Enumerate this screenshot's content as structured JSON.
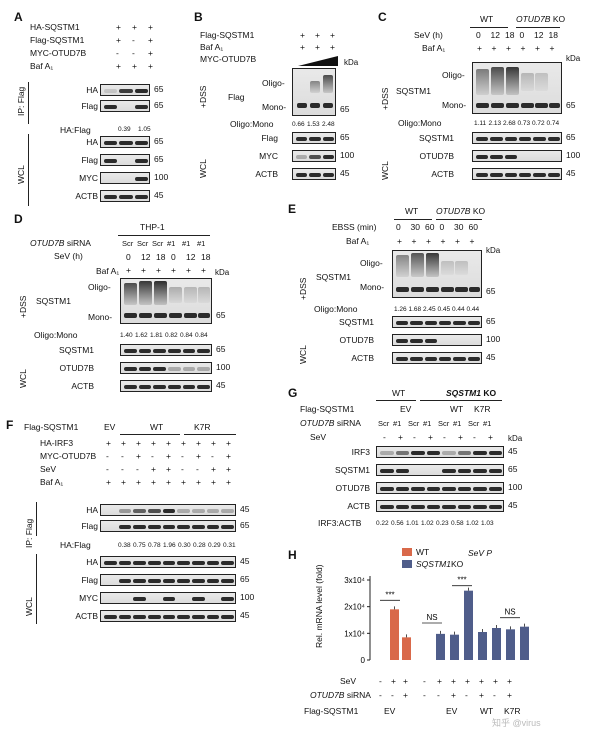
{
  "panels": {
    "A": {
      "letter": "A",
      "conditions": [
        {
          "label": "HA-SQSTM1",
          "marks": [
            "+",
            "+",
            "+"
          ]
        },
        {
          "label": "Flag-SQSTM1",
          "marks": [
            "+",
            "-",
            "+"
          ]
        },
        {
          "label": "MYC-OTUD7B",
          "marks": [
            "-",
            "-",
            "+"
          ]
        },
        {
          "label": "Baf A₁",
          "marks": [
            "+",
            "+",
            "+"
          ]
        }
      ],
      "ip_label": "IP: Flag",
      "wcl_label": "WCL",
      "blots_ip": [
        {
          "label": "HA",
          "mw": "65"
        },
        {
          "label": "Flag",
          "mw": "65"
        }
      ],
      "ratio_label": "HA:Flag",
      "ratio_values": [
        "0.39",
        "1.05"
      ],
      "blots_wcl": [
        {
          "label": "HA",
          "mw": "65"
        },
        {
          "label": "Flag",
          "mw": "65"
        },
        {
          "label": "MYC",
          "mw": "100"
        },
        {
          "label": "ACTB",
          "mw": "45"
        }
      ]
    },
    "B": {
      "letter": "B",
      "conditions": [
        {
          "label": "Flag-SQSTM1",
          "marks": [
            "+",
            "+",
            "+"
          ]
        },
        {
          "label": "Baf A₁",
          "marks": [
            "+",
            "+",
            "+"
          ]
        },
        {
          "label": "MYC-OTUD7B",
          "marks": []
        }
      ],
      "kda": "kDa",
      "dss_label": "+DSS",
      "wcl_label": "WCL",
      "oligo": "Oligo-",
      "mono": "Mono-",
      "blot_main": {
        "label": "Flag",
        "mw": "65"
      },
      "ratio_label": "Oligo:Mono",
      "ratio_values": [
        "0.66",
        "1.53",
        "2.48"
      ],
      "blots_wcl": [
        {
          "label": "Flag",
          "mw": "65"
        },
        {
          "label": "MYC",
          "mw": "100"
        },
        {
          "label": "ACTB",
          "mw": "45"
        }
      ]
    },
    "C": {
      "letter": "C",
      "group_wt": "WT",
      "group_ko": "OTUD7B",
      "group_ko_suffix": " KO",
      "sev_label": "SeV (h)",
      "sev_values": [
        "0",
        "12",
        "18",
        "0",
        "12",
        "18"
      ],
      "baf_label": "Baf A₁",
      "baf_marks": [
        "+",
        "+",
        "+",
        "+",
        "+",
        "+"
      ],
      "kda": "kDa",
      "dss_label": "+DSS",
      "wcl_label": "WCL",
      "oligo": "Oligo-",
      "mono": "Mono-",
      "blot_main": {
        "label": "SQSTM1",
        "mw": "65"
      },
      "ratio_label": "Oligo:Mono",
      "ratio_values": [
        "1.11",
        "2.13",
        "2.68",
        "0.73",
        "0.72",
        "0.74"
      ],
      "blots_wcl": [
        {
          "label": "SQSTM1",
          "mw": "65"
        },
        {
          "label": "OTUD7B",
          "mw": "100"
        },
        {
          "label": "ACTB",
          "mw": "45"
        }
      ]
    },
    "D": {
      "letter": "D",
      "cell": "THP-1",
      "sirna_label": "OTUD7B",
      "sirna_suffix": " siRNA",
      "sirna_values": [
        "Scr",
        "Scr",
        "Scr",
        "#1",
        "#1",
        "#1"
      ],
      "sev_label": "SeV (h)",
      "sev_values": [
        "0",
        "12",
        "18",
        "0",
        "12",
        "18"
      ],
      "baf_label": "Baf A₁",
      "kda": "kDa",
      "dss_label": "+DSS",
      "wcl_label": "WCL",
      "oligo": "Oligo-",
      "mono": "Mono-",
      "blot_main": {
        "label": "SQSTM1",
        "mw": "65"
      },
      "ratio_label": "Oligo:Mono",
      "ratio_values": [
        "1.40",
        "1.62",
        "1.81",
        "0.82",
        "0.84",
        "0.84"
      ],
      "blots_wcl": [
        {
          "label": "SQSTM1",
          "mw": "65"
        },
        {
          "label": "OTUD7B",
          "mw": "100"
        },
        {
          "label": "ACTB",
          "mw": "45"
        }
      ]
    },
    "E": {
      "letter": "E",
      "group_wt": "WT",
      "group_ko": "OTUD7B",
      "group_ko_suffix": " KO",
      "ebss_label": "EBSS (min)",
      "ebss_values": [
        "0",
        "30",
        "60",
        "0",
        "30",
        "60"
      ],
      "baf_label": "Baf A₁",
      "kda": "kDa",
      "dss_label": "+DSS",
      "wcl_label": "WCL",
      "oligo": "Oligo-",
      "mono": "Mono-",
      "blot_main": {
        "label": "SQSTM1",
        "mw": "65"
      },
      "ratio_label": "Oligo:Mono",
      "ratio_values": [
        "1.26",
        "1.68",
        "2.45",
        "0.45",
        "0.44",
        "0.44"
      ],
      "blots_wcl": [
        {
          "label": "SQSTM1",
          "mw": "65"
        },
        {
          "label": "OTUD7B",
          "mw": "100"
        },
        {
          "label": "ACTB",
          "mw": "45"
        }
      ]
    },
    "F": {
      "letter": "F",
      "flag_label": "Flag-SQSTM1",
      "groups": [
        "EV",
        "WT",
        "K7R"
      ],
      "conditions": [
        {
          "label": "HA-IRF3"
        },
        {
          "label": "MYC-OTUD7B"
        },
        {
          "label": "SeV"
        },
        {
          "label": "Baf A₁"
        }
      ],
      "ip_label": "IP: Flag",
      "wcl_label": "WCL",
      "blots_ip": [
        {
          "label": "HA",
          "mw": "45"
        },
        {
          "label": "Flag",
          "mw": "65"
        }
      ],
      "ratio_label": "HA:Flag",
      "ratio_values": [
        "0.38",
        "0.75",
        "0.78",
        "1.96",
        "0.30",
        "0.28",
        "0.29",
        "0.31"
      ],
      "blots_wcl": [
        {
          "label": "HA",
          "mw": "45"
        },
        {
          "label": "Flag",
          "mw": "65"
        },
        {
          "label": "MYC",
          "mw": "100"
        },
        {
          "label": "ACTB",
          "mw": "45"
        }
      ]
    },
    "G": {
      "letter": "G",
      "group_wt": "WT",
      "group_ko": "SQSTM1",
      "group_ko_suffix": " KO",
      "flag_label": "Flag-SQSTM1",
      "flag_groups": [
        "EV",
        "WT",
        "K7R"
      ],
      "sirna_label": "OTUD7B",
      "sirna_suffix": " siRNA",
      "sirna_values": [
        "Scr",
        "#1",
        "Scr",
        "#1",
        "Scr",
        "#1",
        "Scr",
        "#1"
      ],
      "sev_label": "SeV",
      "kda": "kDa",
      "blots": [
        {
          "label": "IRF3",
          "mw": "45"
        },
        {
          "label": "SQSTM1",
          "mw": "65"
        },
        {
          "label": "OTUD7B",
          "mw": "100"
        },
        {
          "label": "ACTB",
          "mw": "45"
        }
      ],
      "ratio_label": "IRF3:ACTB",
      "ratio_values": [
        "0.22",
        "0.56",
        "1.01",
        "1.02",
        "0.23",
        "0.58",
        "1.02",
        "1.03"
      ]
    },
    "H": {
      "letter": "H",
      "legend_wt": "WT",
      "legend_ko": "SQSTM1",
      "legend_ko_suffix": "KO",
      "title": "SeV P",
      "ylabel": "Rel. mRNA level (fold)",
      "sev_label": "SeV",
      "sirna_label": "OTUD7B",
      "sirna_suffix": " siRNA",
      "flag_label": "Flag-SQSTM1",
      "flag_groups": [
        "EV",
        "EV",
        "WT",
        "K7R"
      ],
      "sig": [
        "***",
        "NS",
        "***",
        "NS"
      ],
      "sev_marks": [
        "-",
        "+",
        "+",
        "-",
        "+",
        "+",
        "+",
        "+",
        "+",
        "+"
      ],
      "sirna_marks": [
        "-",
        "-",
        "+",
        "-",
        "-",
        "+",
        "-",
        "+",
        "-",
        "+"
      ],
      "watermark": "知乎 @virus",
      "colors": {
        "wt": "#d9694a",
        "ko": "#4f5d8a"
      }
    }
  },
  "chart_data": {
    "type": "bar",
    "title": "SeV P",
    "ylabel": "Rel. mRNA level (fold)",
    "ylim": [
      0,
      30000
    ],
    "ytick_labels": [
      "0",
      "1x10⁴",
      "2x10⁴",
      "3x10⁴"
    ],
    "series": [
      {
        "name": "WT",
        "values": [
          0,
          19000,
          8500
        ],
        "color": "#d9694a"
      },
      {
        "name": "SQSTM1 KO",
        "values": [
          0,
          9800,
          9500,
          26000,
          10500,
          12000,
          11500,
          12500
        ],
        "color": "#4f5d8a"
      }
    ]
  }
}
